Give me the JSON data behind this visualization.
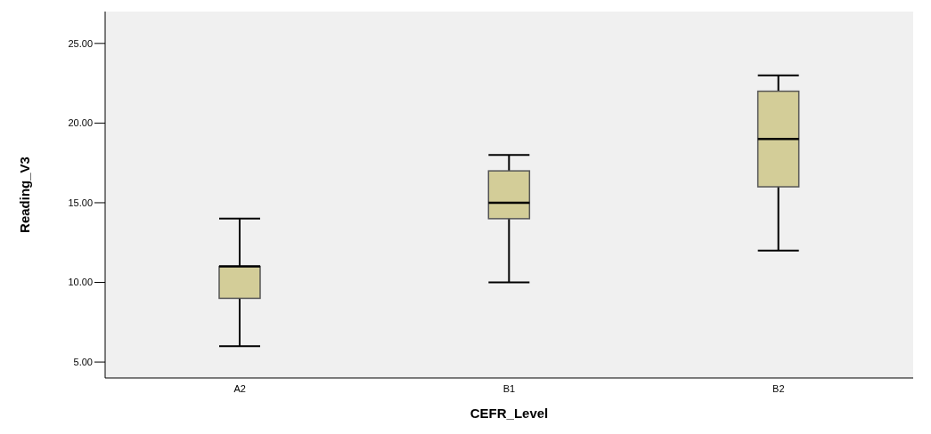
{
  "chart_data": {
    "type": "box",
    "xlabel": "CEFR_Level",
    "ylabel": "Reading_V3",
    "categories": [
      "A2",
      "B1",
      "B2"
    ],
    "color": "#d3cd98",
    "boxes": [
      {
        "low": 6,
        "q1": 9,
        "median": 11,
        "q3": 11,
        "high": 14
      },
      {
        "low": 10,
        "q1": 14,
        "median": 15,
        "q3": 17,
        "high": 18
      },
      {
        "low": 12,
        "q1": 16,
        "median": 19,
        "q3": 22,
        "high": 23
      }
    ],
    "ylim": [
      4,
      27
    ],
    "yticks": [
      {
        "value": 5,
        "label": "5.00"
      },
      {
        "value": 10,
        "label": "10.00"
      },
      {
        "value": 15,
        "label": "15.00"
      },
      {
        "value": 20,
        "label": "20.00"
      },
      {
        "value": 25,
        "label": "25.00"
      }
    ]
  }
}
